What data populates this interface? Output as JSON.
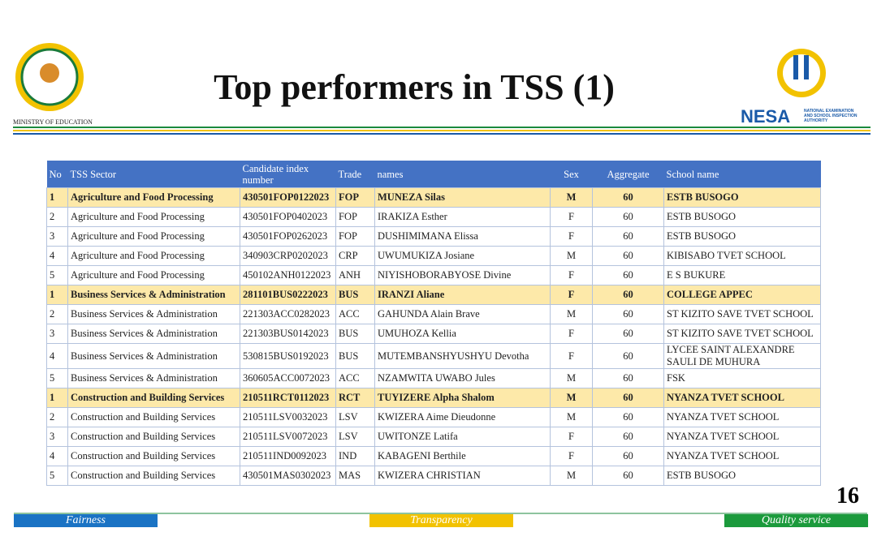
{
  "header": {
    "title": "Top performers in TSS (1)",
    "ministry": "MINISTRY OF EDUCATION",
    "logo_text": "NESA",
    "logo_subtext": [
      "NATIONAL EXAMINATION",
      "AND SCHOOL INSPECTION",
      "AUTHORITY"
    ]
  },
  "table": {
    "columns": [
      "No",
      "TSS Sector",
      "Candidate index number",
      "Trade",
      "names",
      "Sex",
      "Aggregate",
      "School name"
    ],
    "rows": [
      {
        "highlight": true,
        "cells": [
          "1",
          "Agriculture and Food Processing",
          "430501FOP0122023",
          "FOP",
          "MUNEZA Silas",
          "M",
          "60",
          "ESTB BUSOGO"
        ]
      },
      {
        "highlight": false,
        "cells": [
          "2",
          "Agriculture and Food Processing",
          "430501FOP0402023",
          "FOP",
          "IRAKIZA Esther",
          "F",
          "60",
          "ESTB BUSOGO"
        ]
      },
      {
        "highlight": false,
        "cells": [
          "3",
          "Agriculture and Food Processing",
          "430501FOP0262023",
          "FOP",
          "DUSHIMIMANA Elissa",
          "F",
          "60",
          "ESTB BUSOGO"
        ]
      },
      {
        "highlight": false,
        "cells": [
          "4",
          "Agriculture and Food Processing",
          "340903CRP0202023",
          "CRP",
          "UWUMUKIZA Josiane",
          "M",
          "60",
          "KIBISABO TVET SCHOOL"
        ]
      },
      {
        "highlight": false,
        "cells": [
          "5",
          "Agriculture and Food Processing",
          "450102ANH0122023",
          "ANH",
          "NIYISHOBORABYOSE Divine",
          "F",
          "60",
          "E S BUKURE"
        ]
      },
      {
        "highlight": true,
        "cells": [
          "1",
          "Business Services & Administration",
          "281101BUS0222023",
          "BUS",
          "IRANZI Aliane",
          "F",
          "60",
          "COLLEGE APPEC"
        ]
      },
      {
        "highlight": false,
        "cells": [
          "2",
          "Business Services & Administration",
          "221303ACC0282023",
          "ACC",
          "GAHUNDA Alain Brave",
          "M",
          "60",
          "ST KIZITO SAVE TVET SCHOOL"
        ]
      },
      {
        "highlight": false,
        "cells": [
          "3",
          "Business Services & Administration",
          "221303BUS0142023",
          "BUS",
          "UMUHOZA Kellia",
          "F",
          "60",
          "ST KIZITO SAVE TVET SCHOOL"
        ]
      },
      {
        "highlight": false,
        "cells": [
          "4",
          "Business Services & Administration",
          "530815BUS0192023",
          "BUS",
          "MUTEMBANSHYUSHYU Devotha",
          "F",
          "60",
          "LYCEE SAINT ALEXANDRE SAULI DE MUHURA"
        ]
      },
      {
        "highlight": false,
        "cells": [
          "5",
          "Business Services & Administration",
          "360605ACC0072023",
          "ACC",
          "NZAMWITA UWABO Jules",
          "M",
          "60",
          "FSK"
        ]
      },
      {
        "highlight": true,
        "cells": [
          "1",
          "Construction and Building Services",
          "210511RCT0112023",
          "RCT",
          "TUYIZERE Alpha Shalom",
          "M",
          "60",
          "NYANZA TVET SCHOOL"
        ]
      },
      {
        "highlight": false,
        "cells": [
          "2",
          "Construction and Building Services",
          "210511LSV0032023",
          "LSV",
          "KWIZERA Aime Dieudonne",
          "M",
          "60",
          "NYANZA TVET SCHOOL"
        ]
      },
      {
        "highlight": false,
        "cells": [
          "3",
          "Construction and Building Services",
          "210511LSV0072023",
          "LSV",
          "UWITONZE Latifa",
          "F",
          "60",
          "NYANZA TVET SCHOOL"
        ]
      },
      {
        "highlight": false,
        "cells": [
          "4",
          "Construction and Building Services",
          "210511IND0092023",
          "IND",
          "KABAGENI Berthile",
          "F",
          "60",
          "NYANZA TVET SCHOOL"
        ]
      },
      {
        "highlight": false,
        "cells": [
          "5",
          "Construction and Building Services",
          "430501MAS0302023",
          "MAS",
          "KWIZERA CHRISTIAN",
          "M",
          "60",
          "ESTB BUSOGO"
        ]
      }
    ]
  },
  "page_number": "16",
  "footer": {
    "left": "Fairness",
    "center": "Transparency",
    "right": "Quality service"
  }
}
